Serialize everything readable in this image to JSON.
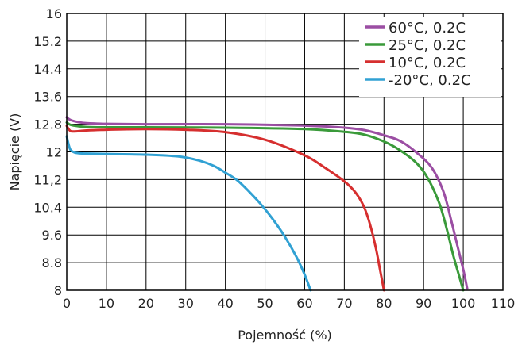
{
  "chart_data": {
    "type": "line",
    "title": "",
    "xlabel": "Pojemność (%)",
    "ylabel": "Napięcie (V)",
    "xlim": [
      0,
      110
    ],
    "ylim": [
      8,
      16
    ],
    "x_ticks": [
      0,
      10,
      20,
      30,
      40,
      50,
      60,
      70,
      80,
      90,
      100,
      110
    ],
    "x_tick_labels": [
      "0",
      "10",
      "20",
      "30",
      "40",
      "50",
      "60",
      "70",
      "80",
      "90",
      "100",
      "110"
    ],
    "y_ticks": [
      8,
      8.8,
      9.6,
      10.4,
      11.2,
      12,
      12.8,
      13.6,
      14.4,
      15.2,
      16
    ],
    "y_tick_labels": [
      "8",
      "8.8",
      "9.6",
      "10.4",
      "11,2",
      "12",
      "12.8",
      "13.6",
      "14.4",
      "15.2",
      "16"
    ],
    "grid": true,
    "legend_position": "top-right",
    "series": [
      {
        "name": "60°C, 0.2C",
        "color": "#9b4ea3",
        "x": [
          0,
          1,
          3,
          5,
          10,
          20,
          40,
          60,
          70,
          75,
          80,
          84,
          88,
          92,
          95,
          97,
          98.5,
          100,
          101
        ],
        "y": [
          13.0,
          12.92,
          12.86,
          12.83,
          12.81,
          12.8,
          12.8,
          12.76,
          12.7,
          12.63,
          12.48,
          12.32,
          12.0,
          11.55,
          10.85,
          10.0,
          9.3,
          8.6,
          8.05
        ]
      },
      {
        "name": "25°C, 0.2C",
        "color": "#3a9a3a",
        "x": [
          0,
          1,
          3,
          5,
          10,
          20,
          40,
          60,
          70,
          75,
          80,
          84,
          88,
          91,
          94,
          96,
          97.5,
          99,
          100
        ],
        "y": [
          12.85,
          12.78,
          12.74,
          12.72,
          12.71,
          12.71,
          12.7,
          12.66,
          12.58,
          12.5,
          12.3,
          12.05,
          11.7,
          11.25,
          10.5,
          9.7,
          9.0,
          8.4,
          8.0
        ]
      },
      {
        "name": "10°C, 0.2C",
        "color": "#d62f2f",
        "x": [
          0,
          1,
          3,
          5,
          10,
          20,
          30,
          40,
          50,
          60,
          65,
          70,
          73,
          75,
          76.5,
          78,
          79,
          80
        ],
        "y": [
          12.75,
          12.6,
          12.6,
          12.62,
          12.64,
          12.66,
          12.64,
          12.57,
          12.35,
          11.9,
          11.55,
          11.15,
          10.8,
          10.4,
          9.9,
          9.2,
          8.6,
          8.0
        ]
      },
      {
        "name": "-20°C, 0.2C",
        "color": "#31a1d3",
        "x": [
          0,
          0.5,
          1,
          2,
          3,
          5,
          10,
          20,
          28,
          33,
          37,
          40,
          43,
          46,
          49,
          52,
          55,
          58,
          60,
          61.5
        ],
        "y": [
          12.45,
          12.2,
          12.05,
          11.98,
          11.96,
          11.95,
          11.94,
          11.92,
          11.87,
          11.76,
          11.6,
          11.4,
          11.18,
          10.85,
          10.48,
          10.05,
          9.55,
          8.95,
          8.45,
          8.0
        ]
      }
    ]
  }
}
